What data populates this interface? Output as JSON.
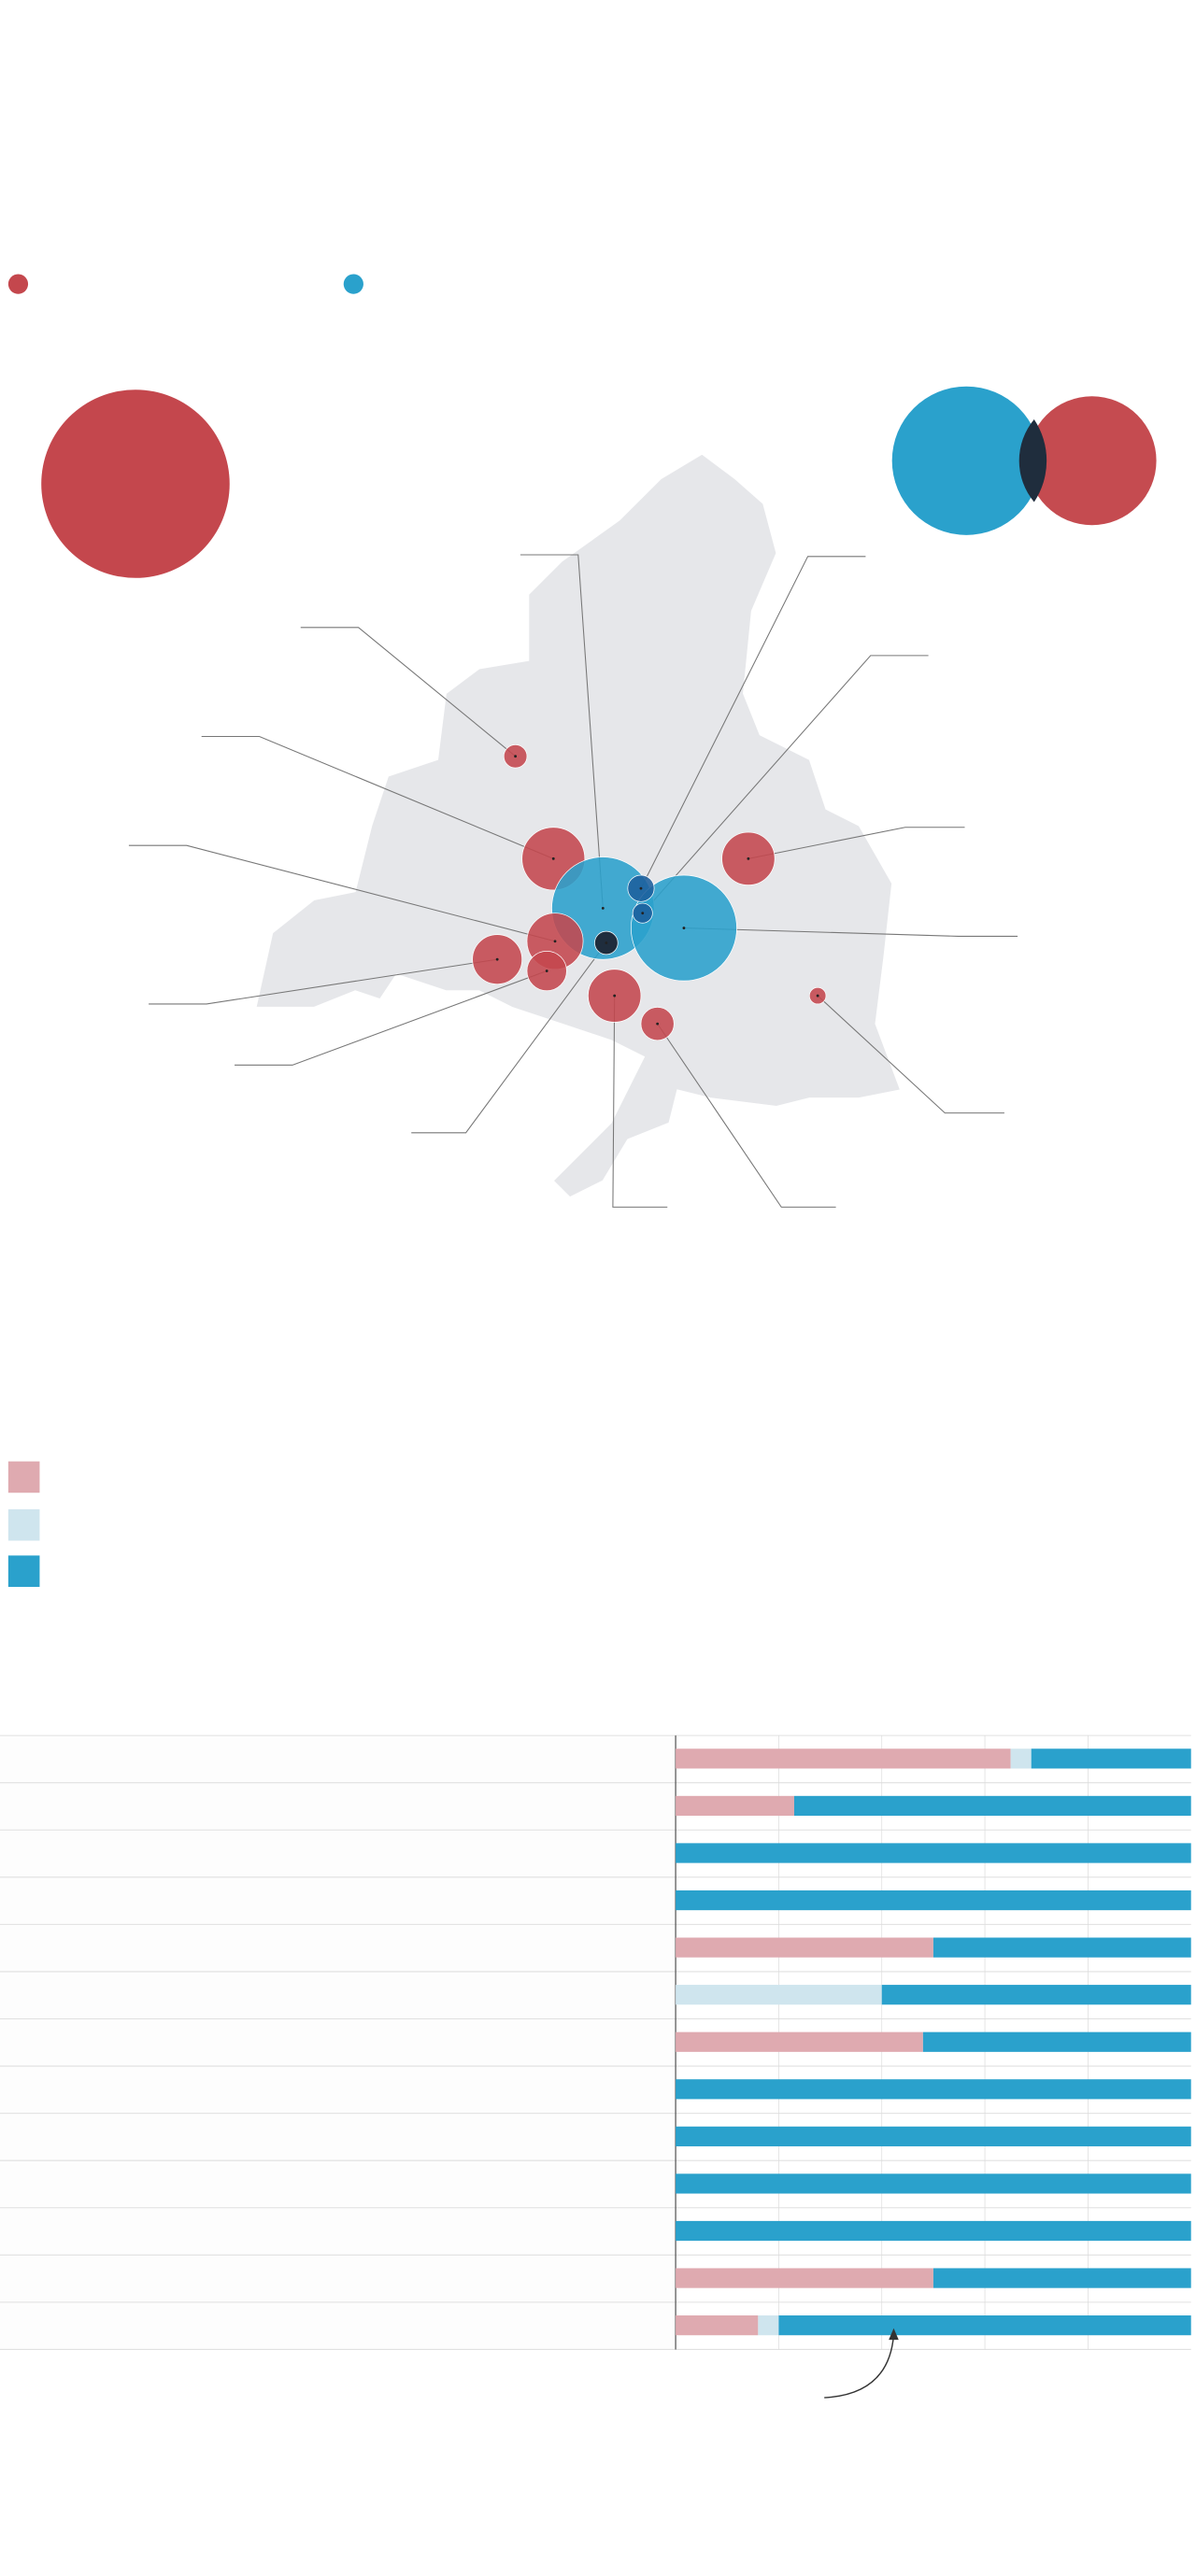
{
  "colors": {
    "red": "#c4474d",
    "blue": "#2aa1cc",
    "overlap": "#1f2d3d",
    "map_fill": "#e6e7ea",
    "pink": "#dfaab0",
    "light_blue": "#cfe5ee",
    "leader": "#777777"
  },
  "legend_top": [
    {
      "color": "#c4474d",
      "icon": "red-dot-icon"
    },
    {
      "color": "#2aa1cc",
      "icon": "blue-dot-icon"
    }
  ],
  "legend_bottom": [
    {
      "color": "#dfaab0",
      "icon": "pink-swatch-icon"
    },
    {
      "color": "#cfe5ee",
      "icon": "light-blue-swatch-icon"
    },
    {
      "color": "#2aa1cc",
      "icon": "blue-swatch-icon"
    }
  ],
  "chart_data": {
    "type": "bar",
    "orientation": "horizontal-stacked-100",
    "xlim": [
      0,
      100
    ],
    "grid": true,
    "series": [
      {
        "name": "pink",
        "values": [
          65,
          23,
          0,
          0,
          50,
          0,
          48,
          0,
          0,
          0,
          0,
          50,
          16
        ]
      },
      {
        "name": "light_blue",
        "values": [
          4,
          0,
          0,
          0,
          0,
          40,
          0,
          0,
          0,
          0,
          0,
          0,
          4
        ]
      },
      {
        "name": "blue",
        "values": [
          31,
          77,
          100,
          100,
          50,
          60,
          52,
          100,
          100,
          100,
          100,
          50,
          80
        ]
      }
    ]
  }
}
